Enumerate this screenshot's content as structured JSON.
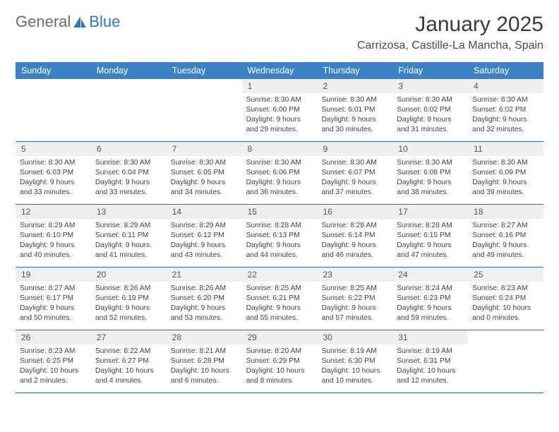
{
  "logo": {
    "general": "General",
    "blue": "Blue"
  },
  "title": "January 2025",
  "location": "Carrizosa, Castille-La Mancha, Spain",
  "colors": {
    "header_bg": "#3c83c5",
    "header_text": "#ffffff",
    "daynum_bg": "#efefef",
    "row_divider": "#2f6fa8",
    "body_text": "#434343",
    "title_text": "#3a3a3a",
    "logo_gray": "#6a6a6a",
    "logo_blue": "#2f78bf"
  },
  "typography": {
    "title_fontsize": 30,
    "location_fontsize": 16,
    "dow_fontsize": 12.5,
    "cell_fontsize": 10.3,
    "daynum_fontsize": 12,
    "logo_fontsize": 22
  },
  "calendar": {
    "type": "table",
    "columns": [
      "Sunday",
      "Monday",
      "Tuesday",
      "Wednesday",
      "Thursday",
      "Friday",
      "Saturday"
    ],
    "weeks": [
      [
        null,
        null,
        null,
        {
          "n": "1",
          "sunrise": "8:30 AM",
          "sunset": "6:00 PM",
          "daylight": "9 hours and 29 minutes."
        },
        {
          "n": "2",
          "sunrise": "8:30 AM",
          "sunset": "6:01 PM",
          "daylight": "9 hours and 30 minutes."
        },
        {
          "n": "3",
          "sunrise": "8:30 AM",
          "sunset": "6:02 PM",
          "daylight": "9 hours and 31 minutes."
        },
        {
          "n": "4",
          "sunrise": "8:30 AM",
          "sunset": "6:02 PM",
          "daylight": "9 hours and 32 minutes."
        }
      ],
      [
        {
          "n": "5",
          "sunrise": "8:30 AM",
          "sunset": "6:03 PM",
          "daylight": "9 hours and 33 minutes."
        },
        {
          "n": "6",
          "sunrise": "8:30 AM",
          "sunset": "6:04 PM",
          "daylight": "9 hours and 33 minutes."
        },
        {
          "n": "7",
          "sunrise": "8:30 AM",
          "sunset": "6:05 PM",
          "daylight": "9 hours and 34 minutes."
        },
        {
          "n": "8",
          "sunrise": "8:30 AM",
          "sunset": "6:06 PM",
          "daylight": "9 hours and 36 minutes."
        },
        {
          "n": "9",
          "sunrise": "8:30 AM",
          "sunset": "6:07 PM",
          "daylight": "9 hours and 37 minutes."
        },
        {
          "n": "10",
          "sunrise": "8:30 AM",
          "sunset": "6:08 PM",
          "daylight": "9 hours and 38 minutes."
        },
        {
          "n": "11",
          "sunrise": "8:30 AM",
          "sunset": "6:09 PM",
          "daylight": "9 hours and 39 minutes."
        }
      ],
      [
        {
          "n": "12",
          "sunrise": "8:29 AM",
          "sunset": "6:10 PM",
          "daylight": "9 hours and 40 minutes."
        },
        {
          "n": "13",
          "sunrise": "8:29 AM",
          "sunset": "6:11 PM",
          "daylight": "9 hours and 41 minutes."
        },
        {
          "n": "14",
          "sunrise": "8:29 AM",
          "sunset": "6:12 PM",
          "daylight": "9 hours and 43 minutes."
        },
        {
          "n": "15",
          "sunrise": "8:28 AM",
          "sunset": "6:13 PM",
          "daylight": "9 hours and 44 minutes."
        },
        {
          "n": "16",
          "sunrise": "8:28 AM",
          "sunset": "6:14 PM",
          "daylight": "9 hours and 46 minutes."
        },
        {
          "n": "17",
          "sunrise": "8:28 AM",
          "sunset": "6:15 PM",
          "daylight": "9 hours and 47 minutes."
        },
        {
          "n": "18",
          "sunrise": "8:27 AM",
          "sunset": "6:16 PM",
          "daylight": "9 hours and 49 minutes."
        }
      ],
      [
        {
          "n": "19",
          "sunrise": "8:27 AM",
          "sunset": "6:17 PM",
          "daylight": "9 hours and 50 minutes."
        },
        {
          "n": "20",
          "sunrise": "8:26 AM",
          "sunset": "6:19 PM",
          "daylight": "9 hours and 52 minutes."
        },
        {
          "n": "21",
          "sunrise": "8:26 AM",
          "sunset": "6:20 PM",
          "daylight": "9 hours and 53 minutes."
        },
        {
          "n": "22",
          "sunrise": "8:25 AM",
          "sunset": "6:21 PM",
          "daylight": "9 hours and 55 minutes."
        },
        {
          "n": "23",
          "sunrise": "8:25 AM",
          "sunset": "6:22 PM",
          "daylight": "9 hours and 57 minutes."
        },
        {
          "n": "24",
          "sunrise": "8:24 AM",
          "sunset": "6:23 PM",
          "daylight": "9 hours and 59 minutes."
        },
        {
          "n": "25",
          "sunrise": "8:23 AM",
          "sunset": "6:24 PM",
          "daylight": "10 hours and 0 minutes."
        }
      ],
      [
        {
          "n": "26",
          "sunrise": "8:23 AM",
          "sunset": "6:25 PM",
          "daylight": "10 hours and 2 minutes."
        },
        {
          "n": "27",
          "sunrise": "8:22 AM",
          "sunset": "6:27 PM",
          "daylight": "10 hours and 4 minutes."
        },
        {
          "n": "28",
          "sunrise": "8:21 AM",
          "sunset": "6:28 PM",
          "daylight": "10 hours and 6 minutes."
        },
        {
          "n": "29",
          "sunrise": "8:20 AM",
          "sunset": "6:29 PM",
          "daylight": "10 hours and 8 minutes."
        },
        {
          "n": "30",
          "sunrise": "8:19 AM",
          "sunset": "6:30 PM",
          "daylight": "10 hours and 10 minutes."
        },
        {
          "n": "31",
          "sunrise": "8:19 AM",
          "sunset": "6:31 PM",
          "daylight": "10 hours and 12 minutes."
        },
        null
      ]
    ],
    "labels": {
      "sunrise": "Sunrise: ",
      "sunset": "Sunset: ",
      "daylight": "Daylight: "
    }
  }
}
